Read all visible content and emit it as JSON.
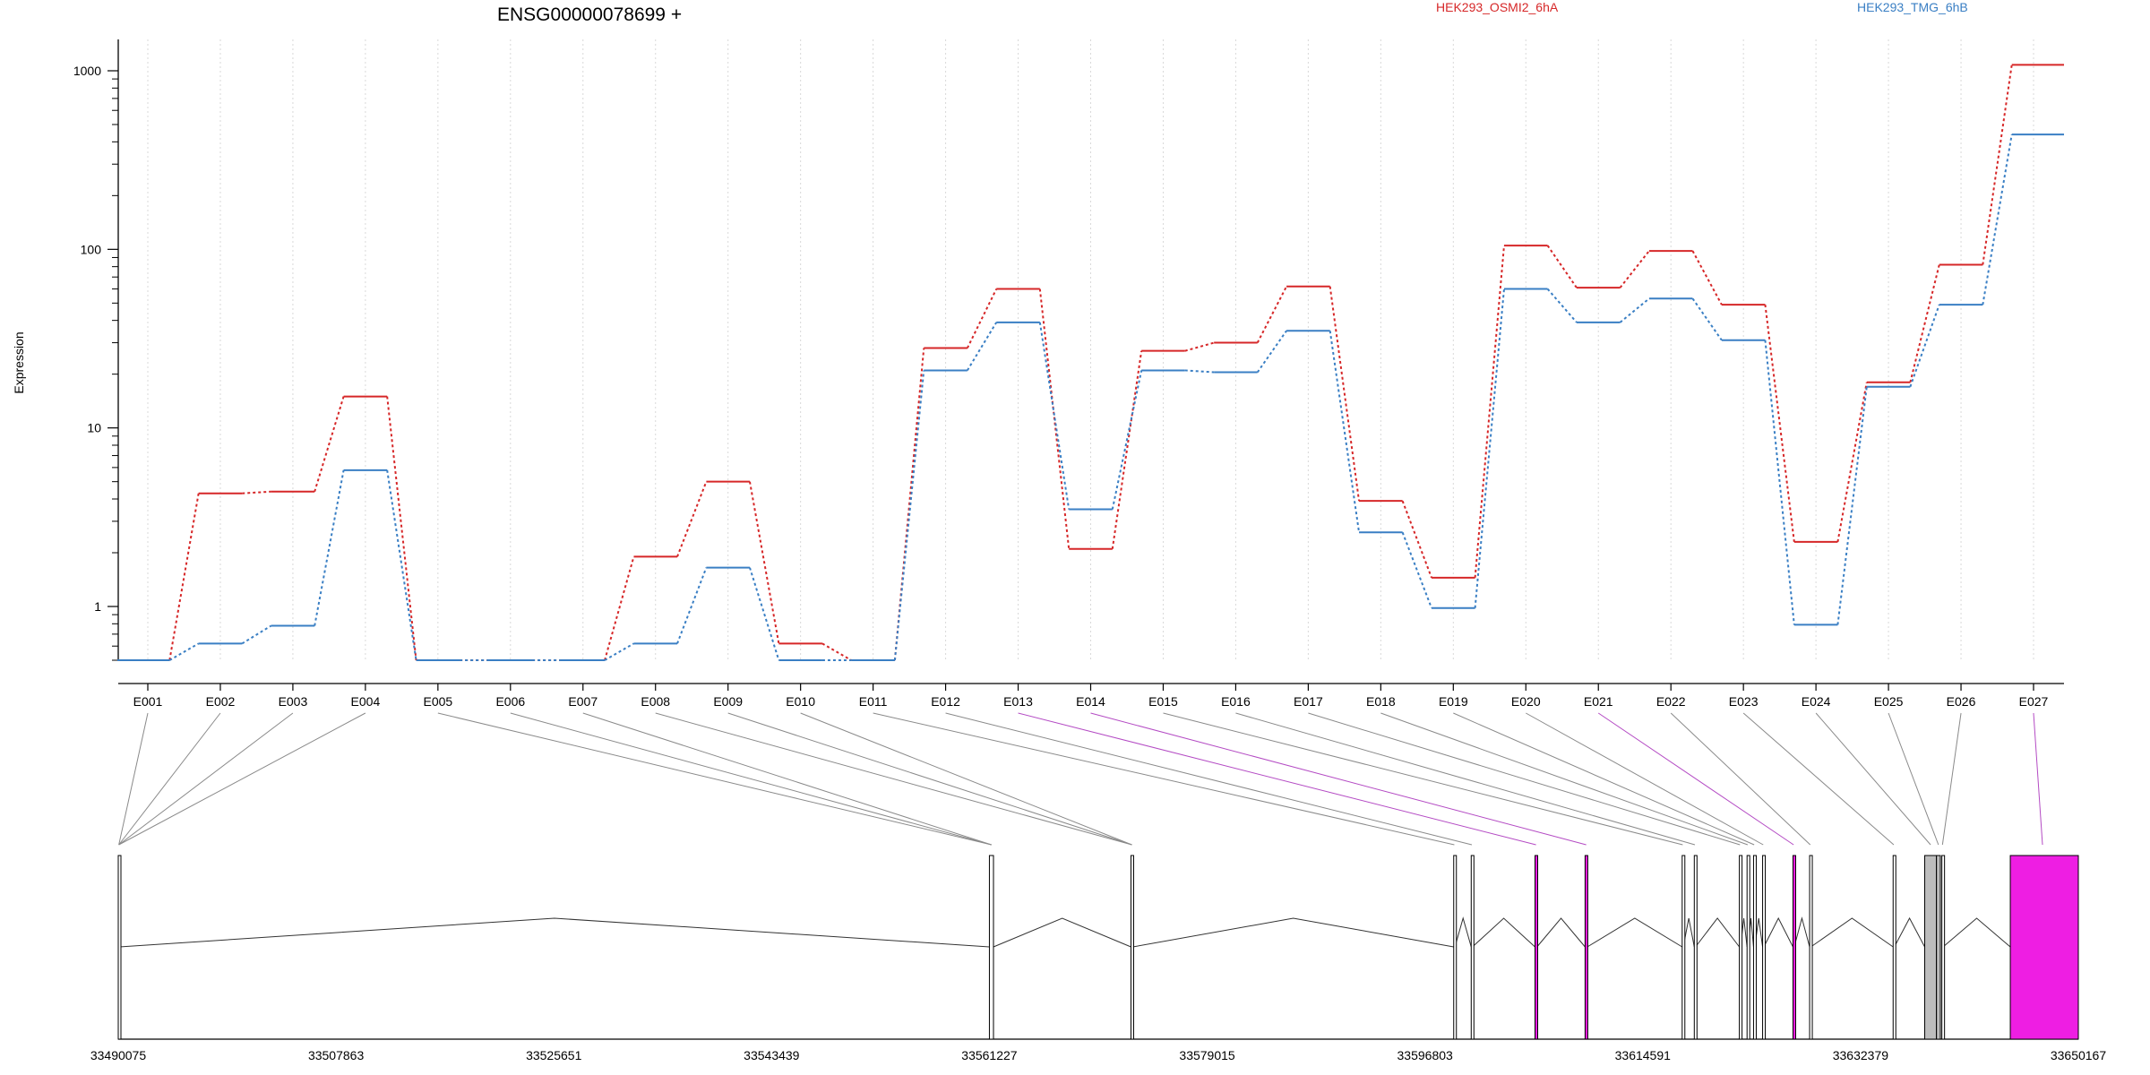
{
  "chart_data": {
    "type": "line",
    "title": "ENSG00000078699 +",
    "ylabel": "Expression",
    "xlabel": "",
    "yscale": "log",
    "yticks": [
      1,
      10,
      100,
      1000
    ],
    "ytick_labels": [
      "1",
      "10",
      "100",
      "1000"
    ],
    "legend_position": "top",
    "grid": "vertical dotted",
    "categories": [
      "E001",
      "E002",
      "E003",
      "E004",
      "E005",
      "E006",
      "E007",
      "E008",
      "E009",
      "E010",
      "E011",
      "E012",
      "E013",
      "E014",
      "E015",
      "E016",
      "E017",
      "E018",
      "E019",
      "E020",
      "E021",
      "E022",
      "E023",
      "E024",
      "E025",
      "E026",
      "E027"
    ],
    "series": [
      {
        "name": "HEK293_OSMI2_6hA",
        "color": "#d62728",
        "values": [
          0.5,
          4.3,
          4.4,
          15,
          0.5,
          0.5,
          0.5,
          1.9,
          5,
          0.62,
          0.5,
          28,
          60,
          2.1,
          27,
          30,
          62,
          3.9,
          1.45,
          105,
          61,
          98,
          49,
          2.3,
          18,
          82,
          1080
        ]
      },
      {
        "name": "HEK293_TMG_6hB",
        "color": "#3a7fc4",
        "values": [
          0.5,
          0.62,
          0.78,
          5.8,
          0.5,
          0.5,
          0.5,
          0.62,
          1.65,
          0.5,
          0.5,
          21,
          39,
          3.5,
          21,
          20.5,
          35,
          2.6,
          0.98,
          60,
          39,
          53,
          31,
          0.79,
          17,
          49,
          440
        ]
      }
    ],
    "gene_model": {
      "coordinate_labels": [
        "33490075",
        "33507863",
        "33525651",
        "33543439",
        "33561227",
        "33579015",
        "33596803",
        "33614591",
        "33632379",
        "33650167"
      ],
      "exon_highlight_color": "#ee1ee3",
      "exons": [
        {
          "exon": "E001",
          "start": 33490075,
          "end": 33490170,
          "fill": "white"
        },
        {
          "exon": "E002",
          "start": 33490075,
          "end": 33490170,
          "fill": "white"
        },
        {
          "exon": "E003",
          "start": 33490075,
          "end": 33490170,
          "fill": "white"
        },
        {
          "exon": "E004",
          "start": 33490075,
          "end": 33490170,
          "fill": "white"
        },
        {
          "exon": "E005",
          "start": 33561227,
          "end": 33561560,
          "fill": "white"
        },
        {
          "exon": "E006",
          "start": 33561227,
          "end": 33561560,
          "fill": "white"
        },
        {
          "exon": "E007",
          "start": 33561227,
          "end": 33561560,
          "fill": "white"
        },
        {
          "exon": "E008",
          "start": 33572790,
          "end": 33572940,
          "fill": "white"
        },
        {
          "exon": "E009",
          "start": 33572790,
          "end": 33572940,
          "fill": "white"
        },
        {
          "exon": "E010",
          "start": 33572790,
          "end": 33572940,
          "fill": "white"
        },
        {
          "exon": "E011",
          "start": 33599150,
          "end": 33599250,
          "fill": "white"
        },
        {
          "exon": "E012",
          "start": 33600580,
          "end": 33600680,
          "fill": "white"
        },
        {
          "exon": "E013",
          "start": 33605790,
          "end": 33605950,
          "fill": "magenta"
        },
        {
          "exon": "E014",
          "start": 33609880,
          "end": 33610060,
          "fill": "magenta"
        },
        {
          "exon": "E015",
          "start": 33617810,
          "end": 33617900,
          "fill": "white"
        },
        {
          "exon": "E016",
          "start": 33618800,
          "end": 33618900,
          "fill": "white"
        },
        {
          "exon": "E017",
          "start": 33622480,
          "end": 33622580,
          "fill": "white"
        },
        {
          "exon": "E018",
          "start": 33623110,
          "end": 33623210,
          "fill": "white"
        },
        {
          "exon": "E019",
          "start": 33623640,
          "end": 33623740,
          "fill": "white"
        },
        {
          "exon": "E020",
          "start": 33624380,
          "end": 33624480,
          "fill": "white"
        },
        {
          "exon": "E021",
          "start": 33626860,
          "end": 33626960,
          "fill": "magenta"
        },
        {
          "exon": "E022",
          "start": 33628220,
          "end": 33628320,
          "fill": "white"
        },
        {
          "exon": "E023",
          "start": 33635040,
          "end": 33635140,
          "fill": "white"
        },
        {
          "exon": "E024",
          "start": 33637620,
          "end": 33638580,
          "fill": "gray"
        },
        {
          "exon": "E025",
          "start": 33638580,
          "end": 33638900,
          "fill": "gray"
        },
        {
          "exon": "E026",
          "start": 33639020,
          "end": 33639120,
          "fill": "white"
        },
        {
          "exon": "E027",
          "start": 33644610,
          "end": 33650167,
          "fill": "magenta"
        }
      ]
    }
  }
}
